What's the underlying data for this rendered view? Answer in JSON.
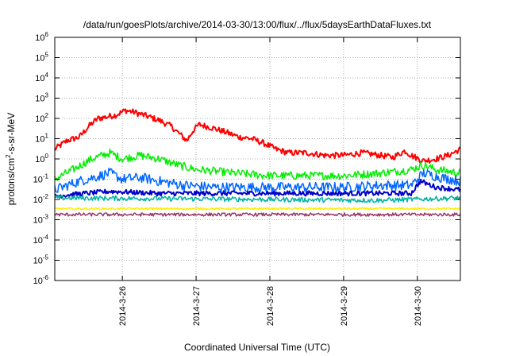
{
  "chart_data": {
    "type": "line",
    "title": "/data/run/goesPlots/archive/2014-03-30/13:00/flux/../flux/5daysEarthDataFluxes.txt",
    "xlabel": "Coordinated Universal Time (UTC)",
    "ylabel": {
      "prefix": "protons/cm",
      "sup": "2",
      "suffix": "-s-sr-MeV"
    },
    "y_scale": "log",
    "ylim": [
      1e-06,
      1000000.0
    ],
    "y_ticks": [
      {
        "base": "10",
        "exp": "-6",
        "value": 1e-06
      },
      {
        "base": "10",
        "exp": "-5",
        "value": 1e-05
      },
      {
        "base": "10",
        "exp": "-4",
        "value": 0.0001
      },
      {
        "base": "10",
        "exp": "-3",
        "value": 0.001
      },
      {
        "base": "10",
        "exp": "-2",
        "value": 0.01
      },
      {
        "base": "10",
        "exp": "-1",
        "value": 0.1
      },
      {
        "base": "10",
        "exp": "0",
        "value": 1
      },
      {
        "base": "10",
        "exp": "1",
        "value": 10
      },
      {
        "base": "10",
        "exp": "2",
        "value": 100
      },
      {
        "base": "10",
        "exp": "3",
        "value": 1000
      },
      {
        "base": "10",
        "exp": "4",
        "value": 10000
      },
      {
        "base": "10",
        "exp": "5",
        "value": 100000
      },
      {
        "base": "10",
        "exp": "6",
        "value": 1000000
      }
    ],
    "xlim": [
      "2014-03-25 02:00",
      "2014-03-30 14:00"
    ],
    "x_ticks": [
      {
        "label": "2014-3-26",
        "value": "2014-03-26 00:00"
      },
      {
        "label": "2014-3-27",
        "value": "2014-03-27 00:00"
      },
      {
        "label": "2014-3-28",
        "value": "2014-03-28 00:00"
      },
      {
        "label": "2014-3-29",
        "value": "2014-03-29 00:00"
      },
      {
        "label": "2014-3-30",
        "value": "2014-03-30 00:00"
      }
    ],
    "grid": true,
    "series": [
      {
        "color": "#ff0000",
        "noise": 0.15,
        "x": [
          "2014-03-25 02:00",
          "2014-03-25 06:00",
          "2014-03-25 10:00",
          "2014-03-25 13:00",
          "2014-03-25 16:00",
          "2014-03-25 19:00",
          "2014-03-25 22:00",
          "2014-03-26 01:00",
          "2014-03-26 04:00",
          "2014-03-26 08:00",
          "2014-03-26 12:00",
          "2014-03-26 16:00",
          "2014-03-26 19:00",
          "2014-03-26 21:00",
          "2014-03-26 23:00",
          "2014-03-27 01:00",
          "2014-03-27 05:00",
          "2014-03-27 10:00",
          "2014-03-27 14:00",
          "2014-03-27 18:00",
          "2014-03-27 22:00",
          "2014-03-28 02:00",
          "2014-03-28 06:00",
          "2014-03-28 12:00",
          "2014-03-28 18:00",
          "2014-03-29 00:00",
          "2014-03-29 06:00",
          "2014-03-29 12:00",
          "2014-03-29 16:00",
          "2014-03-29 20:00",
          "2014-03-29 22:00",
          "2014-03-30 02:00",
          "2014-03-30 06:00",
          "2014-03-30 10:00",
          "2014-03-30 14:00"
        ],
        "y": [
          3,
          8,
          12,
          40,
          100,
          120,
          150,
          250,
          200,
          130,
          80,
          40,
          15,
          8,
          25,
          50,
          35,
          20,
          12,
          10,
          6,
          3,
          2,
          2,
          1.5,
          1.5,
          2,
          1.5,
          1.2,
          2.5,
          1.5,
          0.8,
          1.0,
          1.5,
          3
        ]
      },
      {
        "color": "#00ee00",
        "noise": 0.2,
        "x": [
          "2014-03-25 02:00",
          "2014-03-25 08:00",
          "2014-03-25 14:00",
          "2014-03-25 20:00",
          "2014-03-26 00:00",
          "2014-03-26 06:00",
          "2014-03-26 12:00",
          "2014-03-26 18:00",
          "2014-03-27 00:00",
          "2014-03-27 06:00",
          "2014-03-27 12:00",
          "2014-03-28 00:00",
          "2014-03-28 12:00",
          "2014-03-29 00:00",
          "2014-03-29 12:00",
          "2014-03-29 22:00",
          "2014-03-30 02:00",
          "2014-03-30 06:00",
          "2014-03-30 14:00"
        ],
        "y": [
          0.1,
          0.3,
          1.0,
          2.0,
          1.0,
          1.5,
          1.0,
          0.5,
          0.3,
          0.25,
          0.2,
          0.15,
          0.15,
          0.15,
          0.2,
          0.3,
          0.5,
          0.3,
          0.2
        ]
      },
      {
        "color": "#0066ff",
        "noise": 0.25,
        "x": [
          "2014-03-25 02:00",
          "2014-03-25 10:00",
          "2014-03-25 20:00",
          "2014-03-26 00:00",
          "2014-03-26 06:00",
          "2014-03-26 12:00",
          "2014-03-26 20:00",
          "2014-03-27 06:00",
          "2014-03-28 00:00",
          "2014-03-28 12:00",
          "2014-03-29 00:00",
          "2014-03-29 12:00",
          "2014-03-29 22:00",
          "2014-03-30 02:00",
          "2014-03-30 08:00",
          "2014-03-30 14:00"
        ],
        "y": [
          0.03,
          0.08,
          0.2,
          0.1,
          0.12,
          0.08,
          0.05,
          0.04,
          0.04,
          0.04,
          0.04,
          0.05,
          0.05,
          0.2,
          0.12,
          0.08
        ]
      },
      {
        "color": "#0000cc",
        "noise": 0.12,
        "x": [
          "2014-03-25 02:00",
          "2014-03-25 20:00",
          "2014-03-26 12:00",
          "2014-03-27 12:00",
          "2014-03-28 12:00",
          "2014-03-29 12:00",
          "2014-03-29 22:00",
          "2014-03-30 01:00",
          "2014-03-30 06:00",
          "2014-03-30 14:00"
        ],
        "y": [
          0.015,
          0.025,
          0.02,
          0.02,
          0.02,
          0.02,
          0.02,
          0.08,
          0.04,
          0.03
        ]
      },
      {
        "color": "#00b3a3",
        "noise": 0.12,
        "x": [
          "2014-03-25 02:00",
          "2014-03-26 12:00",
          "2014-03-28 00:00",
          "2014-03-29 12:00",
          "2014-03-30 14:00"
        ],
        "y": [
          0.012,
          0.011,
          0.01,
          0.009,
          0.012
        ]
      },
      {
        "color": "#ffee00",
        "noise": 0.05,
        "x": [
          "2014-03-25 02:00",
          "2014-03-27 12:00",
          "2014-03-30 14:00"
        ],
        "y": [
          0.0035,
          0.0035,
          0.0035
        ]
      },
      {
        "color": "#993366",
        "noise": 0.08,
        "x": [
          "2014-03-25 02:00",
          "2014-03-27 12:00",
          "2014-03-30 14:00"
        ],
        "y": [
          0.0018,
          0.0018,
          0.0018
        ]
      }
    ]
  }
}
